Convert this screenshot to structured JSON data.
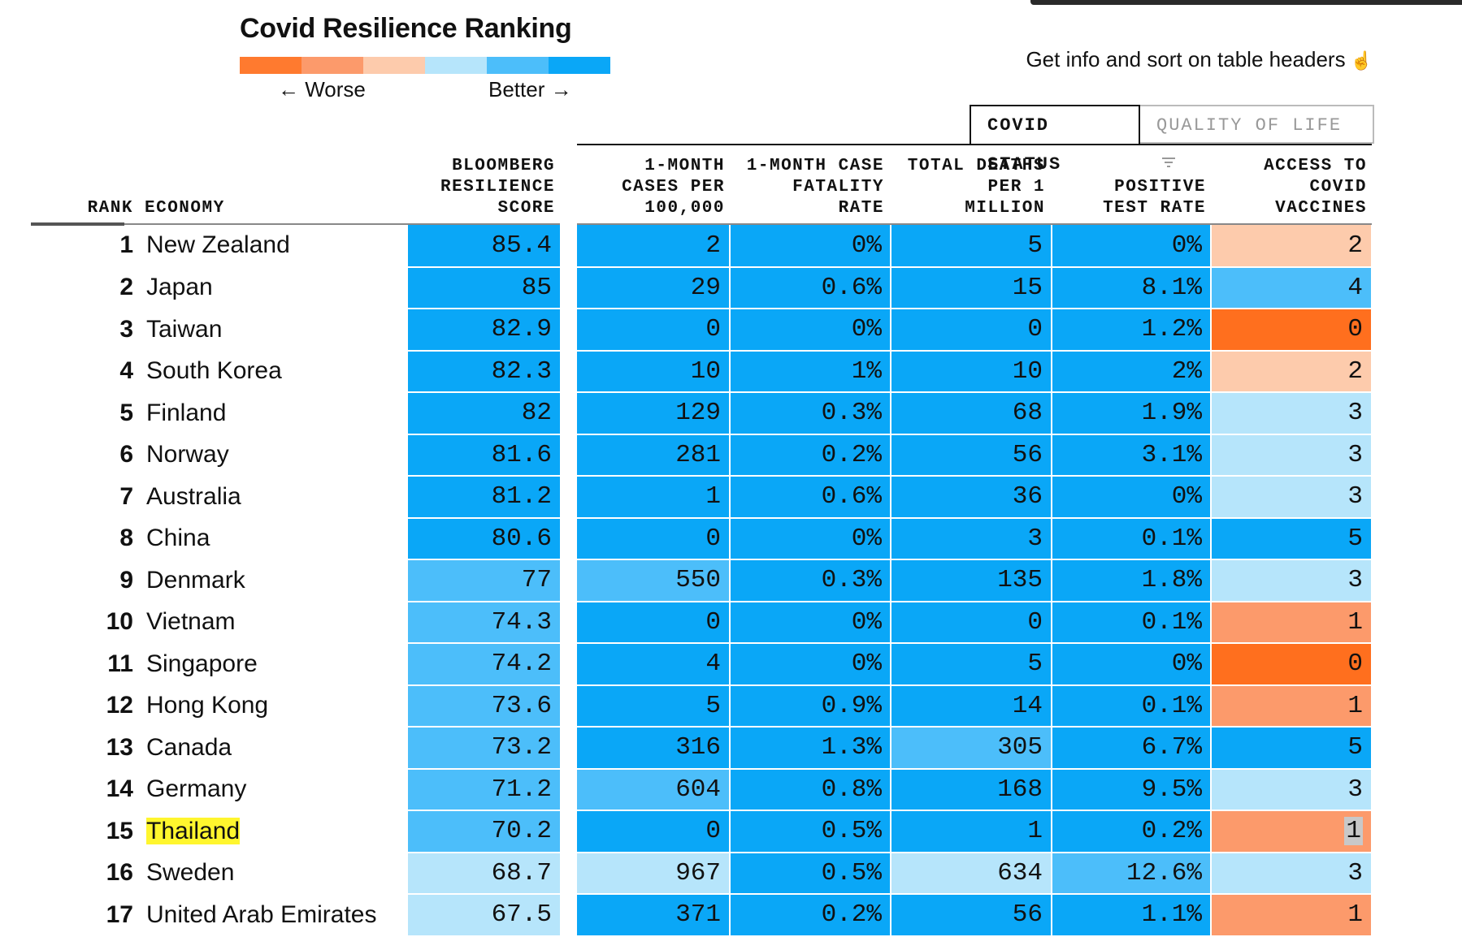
{
  "title": "Covid Resilience Ranking",
  "legend": {
    "worse_label": "← Worse",
    "better_label": "Better →",
    "colors": [
      "#ff7a2f",
      "#fc9a6b",
      "#fdcbac",
      "#b6e5fb",
      "#4cbefa",
      "#0aa7f7"
    ]
  },
  "hint": {
    "text": "Get info and sort on table headers",
    "icon": "pointer-hand-icon"
  },
  "tabs": [
    {
      "label": "COVID STATUS",
      "active": true
    },
    {
      "label": "QUALITY OF LIFE",
      "active": false,
      "icon": "filter-icon"
    }
  ],
  "headers": {
    "rank": "RANK",
    "economy": "ECONOMY",
    "score": [
      "BLOOMBERG",
      "RESILIENCE",
      "SCORE"
    ],
    "cases": [
      "1-MONTH",
      "CASES PER",
      "100,000"
    ],
    "cfr": [
      "1-MONTH CASE",
      "FATALITY",
      "RATE"
    ],
    "deaths": [
      "TOTAL DEATHS",
      "PER 1",
      "MILLION"
    ],
    "ptr": [
      "POSITIVE",
      "TEST RATE"
    ],
    "vac": [
      "ACCESS TO",
      "COVID",
      "VACCINES"
    ]
  },
  "rows": [
    {
      "rank": "1",
      "economy": "New Zealand",
      "score": "85.4",
      "cases": "2",
      "cfr": "0%",
      "deaths": "5",
      "ptr": "0%",
      "vac": "2",
      "colors": {
        "score": "#0aa7f7",
        "cases": "#0aa7f7",
        "cfr": "#0aa7f7",
        "deaths": "#0aa7f7",
        "ptr": "#0aa7f7",
        "vac": "#fdcbac"
      }
    },
    {
      "rank": "2",
      "economy": "Japan",
      "score": "85",
      "cases": "29",
      "cfr": "0.6%",
      "deaths": "15",
      "ptr": "8.1%",
      "vac": "4",
      "colors": {
        "score": "#0aa7f7",
        "cases": "#0aa7f7",
        "cfr": "#0aa7f7",
        "deaths": "#0aa7f7",
        "ptr": "#0aa7f7",
        "vac": "#4cbefa"
      }
    },
    {
      "rank": "3",
      "economy": "Taiwan",
      "score": "82.9",
      "cases": "0",
      "cfr": "0%",
      "deaths": "0",
      "ptr": "1.2%",
      "vac": "0",
      "colors": {
        "score": "#0aa7f7",
        "cases": "#0aa7f7",
        "cfr": "#0aa7f7",
        "deaths": "#0aa7f7",
        "ptr": "#0aa7f7",
        "vac": "#ff6f1e"
      }
    },
    {
      "rank": "4",
      "economy": "South Korea",
      "score": "82.3",
      "cases": "10",
      "cfr": "1%",
      "deaths": "10",
      "ptr": "2%",
      "vac": "2",
      "colors": {
        "score": "#0aa7f7",
        "cases": "#0aa7f7",
        "cfr": "#0aa7f7",
        "deaths": "#0aa7f7",
        "ptr": "#0aa7f7",
        "vac": "#fdcbac"
      }
    },
    {
      "rank": "5",
      "economy": "Finland",
      "score": "82",
      "cases": "129",
      "cfr": "0.3%",
      "deaths": "68",
      "ptr": "1.9%",
      "vac": "3",
      "colors": {
        "score": "#0aa7f7",
        "cases": "#0aa7f7",
        "cfr": "#0aa7f7",
        "deaths": "#0aa7f7",
        "ptr": "#0aa7f7",
        "vac": "#b6e5fb"
      }
    },
    {
      "rank": "6",
      "economy": "Norway",
      "score": "81.6",
      "cases": "281",
      "cfr": "0.2%",
      "deaths": "56",
      "ptr": "3.1%",
      "vac": "3",
      "colors": {
        "score": "#0aa7f7",
        "cases": "#0aa7f7",
        "cfr": "#0aa7f7",
        "deaths": "#0aa7f7",
        "ptr": "#0aa7f7",
        "vac": "#b6e5fb"
      }
    },
    {
      "rank": "7",
      "economy": "Australia",
      "score": "81.2",
      "cases": "1",
      "cfr": "0.6%",
      "deaths": "36",
      "ptr": "0%",
      "vac": "3",
      "colors": {
        "score": "#0aa7f7",
        "cases": "#0aa7f7",
        "cfr": "#0aa7f7",
        "deaths": "#0aa7f7",
        "ptr": "#0aa7f7",
        "vac": "#b6e5fb"
      }
    },
    {
      "rank": "8",
      "economy": "China",
      "score": "80.6",
      "cases": "0",
      "cfr": "0%",
      "deaths": "3",
      "ptr": "0.1%",
      "vac": "5",
      "colors": {
        "score": "#0aa7f7",
        "cases": "#0aa7f7",
        "cfr": "#0aa7f7",
        "deaths": "#0aa7f7",
        "ptr": "#0aa7f7",
        "vac": "#0aa7f7"
      }
    },
    {
      "rank": "9",
      "economy": "Denmark",
      "score": "77",
      "cases": "550",
      "cfr": "0.3%",
      "deaths": "135",
      "ptr": "1.8%",
      "vac": "3",
      "colors": {
        "score": "#4cbefa",
        "cases": "#4cbefa",
        "cfr": "#0aa7f7",
        "deaths": "#0aa7f7",
        "ptr": "#0aa7f7",
        "vac": "#b6e5fb"
      }
    },
    {
      "rank": "10",
      "economy": "Vietnam",
      "score": "74.3",
      "cases": "0",
      "cfr": "0%",
      "deaths": "0",
      "ptr": "0.1%",
      "vac": "1",
      "colors": {
        "score": "#4cbefa",
        "cases": "#0aa7f7",
        "cfr": "#0aa7f7",
        "deaths": "#0aa7f7",
        "ptr": "#0aa7f7",
        "vac": "#fc9a6b"
      }
    },
    {
      "rank": "11",
      "economy": "Singapore",
      "score": "74.2",
      "cases": "4",
      "cfr": "0%",
      "deaths": "5",
      "ptr": "0%",
      "vac": "0",
      "colors": {
        "score": "#4cbefa",
        "cases": "#0aa7f7",
        "cfr": "#0aa7f7",
        "deaths": "#0aa7f7",
        "ptr": "#0aa7f7",
        "vac": "#ff6f1e"
      }
    },
    {
      "rank": "12",
      "economy": "Hong Kong",
      "score": "73.6",
      "cases": "5",
      "cfr": "0.9%",
      "deaths": "14",
      "ptr": "0.1%",
      "vac": "1",
      "colors": {
        "score": "#4cbefa",
        "cases": "#0aa7f7",
        "cfr": "#0aa7f7",
        "deaths": "#0aa7f7",
        "ptr": "#0aa7f7",
        "vac": "#fc9a6b"
      }
    },
    {
      "rank": "13",
      "economy": "Canada",
      "score": "73.2",
      "cases": "316",
      "cfr": "1.3%",
      "deaths": "305",
      "ptr": "6.7%",
      "vac": "5",
      "colors": {
        "score": "#4cbefa",
        "cases": "#0aa7f7",
        "cfr": "#0aa7f7",
        "deaths": "#4cbefa",
        "ptr": "#0aa7f7",
        "vac": "#0aa7f7"
      }
    },
    {
      "rank": "14",
      "economy": "Germany",
      "score": "71.2",
      "cases": "604",
      "cfr": "0.8%",
      "deaths": "168",
      "ptr": "9.5%",
      "vac": "3",
      "colors": {
        "score": "#4cbefa",
        "cases": "#4cbefa",
        "cfr": "#0aa7f7",
        "deaths": "#0aa7f7",
        "ptr": "#0aa7f7",
        "vac": "#b6e5fb"
      }
    },
    {
      "rank": "15",
      "economy": "Thailand",
      "score": "70.2",
      "cases": "0",
      "cfr": "0.5%",
      "deaths": "1",
      "ptr": "0.2%",
      "vac": "1",
      "highlight": true,
      "colors": {
        "score": "#4cbefa",
        "cases": "#0aa7f7",
        "cfr": "#0aa7f7",
        "deaths": "#0aa7f7",
        "ptr": "#0aa7f7",
        "vac": "#fc9a6b"
      }
    },
    {
      "rank": "16",
      "economy": "Sweden",
      "score": "68.7",
      "cases": "967",
      "cfr": "0.5%",
      "deaths": "634",
      "ptr": "12.6%",
      "vac": "3",
      "colors": {
        "score": "#b6e5fb",
        "cases": "#b6e5fb",
        "cfr": "#0aa7f7",
        "deaths": "#b6e5fb",
        "ptr": "#4cbefa",
        "vac": "#b6e5fb"
      }
    },
    {
      "rank": "17",
      "economy": "United Arab Emirates",
      "score": "67.5",
      "cases": "371",
      "cfr": "0.2%",
      "deaths": "56",
      "ptr": "1.1%",
      "vac": "1",
      "colors": {
        "score": "#b6e5fb",
        "cases": "#0aa7f7",
        "cfr": "#0aa7f7",
        "deaths": "#0aa7f7",
        "ptr": "#0aa7f7",
        "vac": "#fc9a6b"
      }
    }
  ]
}
